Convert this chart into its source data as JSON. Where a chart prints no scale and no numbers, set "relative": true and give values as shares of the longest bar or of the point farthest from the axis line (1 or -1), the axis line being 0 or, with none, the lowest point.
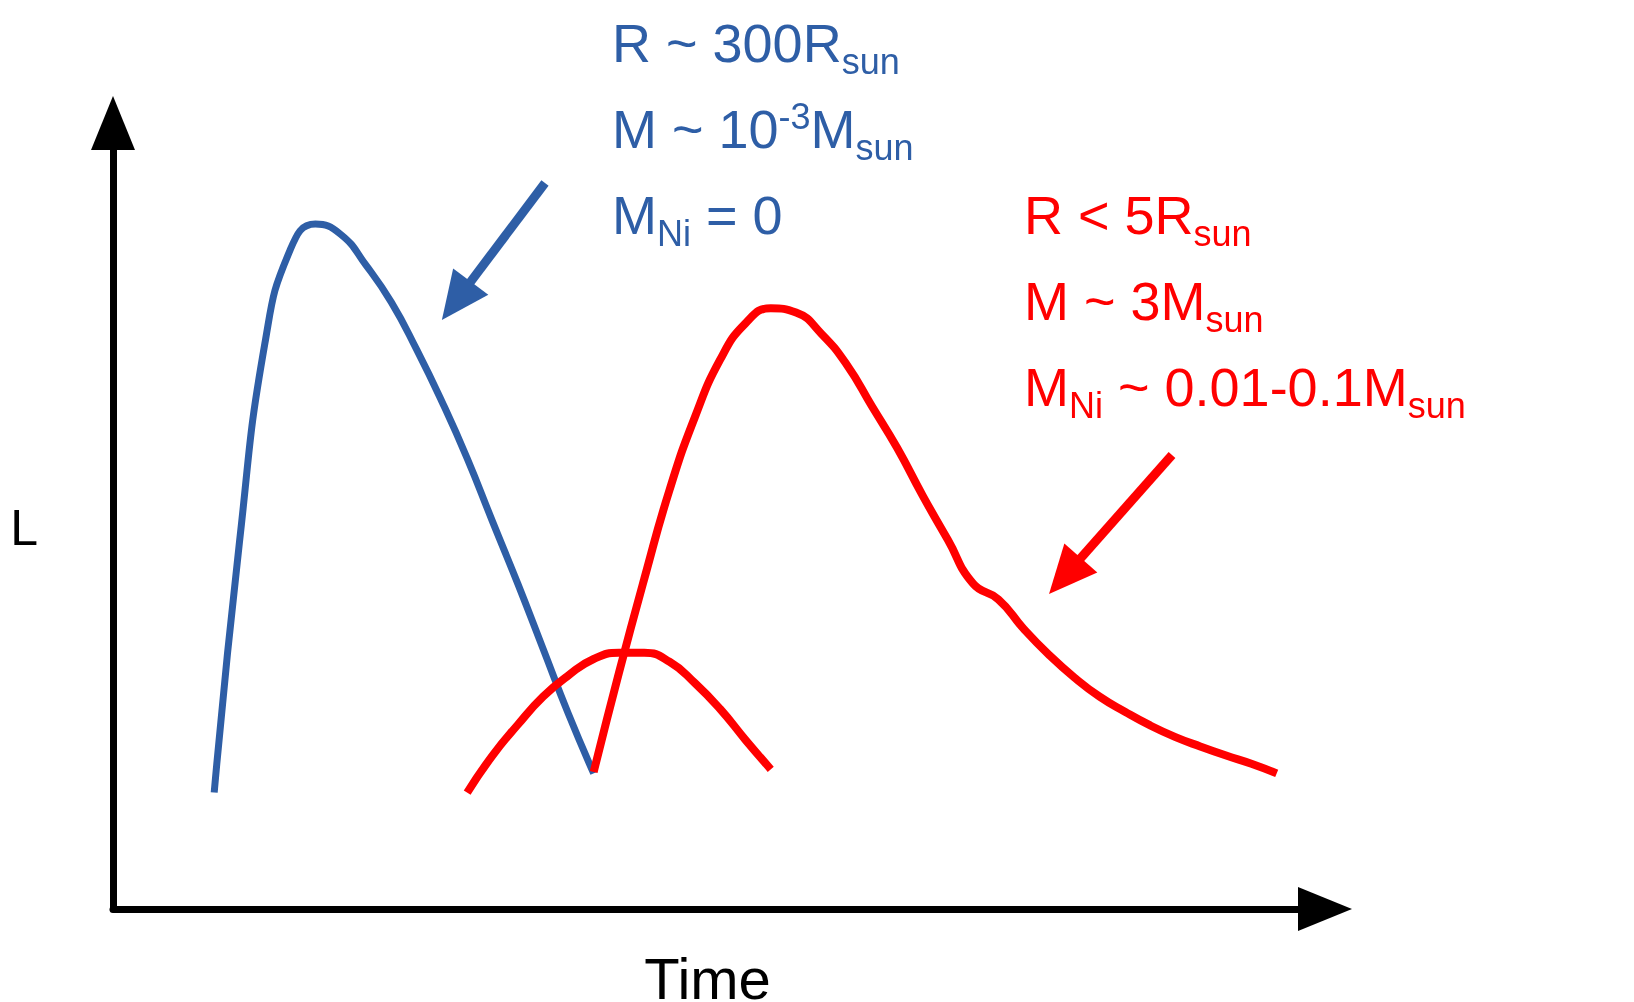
{
  "chart_data": {
    "type": "line",
    "relative": true,
    "xlabel": "Time",
    "ylabel": "L",
    "grid": false,
    "marker": "none",
    "line_style": "solid",
    "categories": [
      null,
      null,
      null,
      null,
      null,
      null,
      null,
      null,
      null,
      null,
      null,
      null,
      null,
      null,
      null,
      null,
      null,
      null,
      null,
      null,
      null,
      null,
      null,
      null,
      null,
      null,
      null,
      null,
      null,
      null,
      null,
      null,
      null,
      null,
      null,
      null,
      null,
      null,
      null,
      null,
      null,
      null,
      null,
      null,
      null,
      null,
      null,
      null
    ],
    "series": [
      {
        "color": "#2e5ea6",
        "values": [
          null,
          null,
          null,
          null,
          0.17,
          0.536,
          0.825,
          0.962,
          1.0,
          0.985,
          0.94,
          0.886,
          0.817,
          0.741,
          0.658,
          0.566,
          0.475,
          0.38,
          0.285,
          0.198,
          null,
          null,
          null,
          null,
          null,
          null,
          null,
          null,
          null,
          null,
          null,
          null,
          null,
          null,
          null,
          null,
          null,
          null,
          null,
          null,
          null,
          null,
          null,
          null,
          null,
          null,
          null,
          null
        ]
      },
      {
        "color": "#ff0000",
        "values": [
          null,
          null,
          null,
          null,
          null,
          null,
          null,
          null,
          null,
          null,
          null,
          null,
          null,
          null,
          null,
          null,
          null,
          null,
          null,
          0.2,
          0.345,
          0.482,
          0.612,
          0.718,
          0.802,
          0.855,
          0.877,
          0.871,
          0.84,
          0.795,
          0.734,
          0.673,
          0.604,
          0.539,
          0.475,
          0.452,
          0.409,
          0.371,
          0.338,
          0.31,
          0.288,
          0.268,
          0.251,
          0.237,
          0.224,
          0.212,
          0.198,
          null
        ]
      },
      {
        "color": "#ff0000",
        "values": [
          null,
          null,
          null,
          null,
          null,
          null,
          null,
          null,
          null,
          null,
          null,
          null,
          null,
          null,
          0.17,
          0.224,
          0.269,
          0.31,
          0.341,
          0.365,
          0.374,
          0.374,
          0.361,
          0.33,
          0.292,
          0.247,
          0.204,
          null,
          null,
          null,
          null,
          null,
          null,
          null,
          null,
          null,
          null,
          null,
          null,
          null,
          null,
          null,
          null,
          null,
          null,
          null,
          null,
          null
        ]
      }
    ],
    "annotations": [
      "R ~ 300R$_{sun}$\nM ~ 10$^{-3}$M$_{sun}$\nM$_{Ni}$ = 0",
      "R < 5R$_{sun}$\nM ~ 3M$_{sun}$\nM$_{Ni}$ ~ 0.01-0.1M$_{sun}$"
    ]
  }
}
